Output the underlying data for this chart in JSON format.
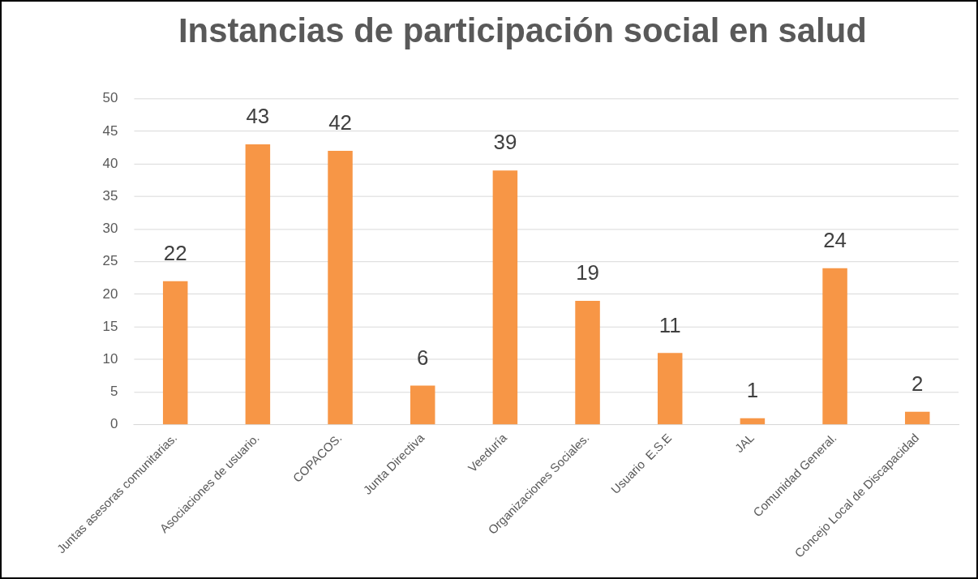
{
  "chart_data": {
    "type": "bar",
    "title": "Instancias de participación social en salud",
    "categories": [
      "Juntas asesoras comunitarias.",
      "Asociaciones de usuario.",
      "COPACOS.",
      "Junta Directiva",
      "Veeduría",
      "Organizaciones Sociales.",
      "Usuario  E.S.E",
      "JAL",
      "Comunidad General.",
      "Concejo Local de Discapacidad"
    ],
    "values": [
      22,
      43,
      42,
      6,
      39,
      19,
      11,
      1,
      24,
      2
    ],
    "color": "#f79646",
    "ylim": [
      0,
      50
    ],
    "yticks": [
      0,
      5,
      10,
      15,
      20,
      25,
      30,
      35,
      40,
      45,
      50
    ],
    "grid": "y",
    "legend": false,
    "data_labels": true
  }
}
